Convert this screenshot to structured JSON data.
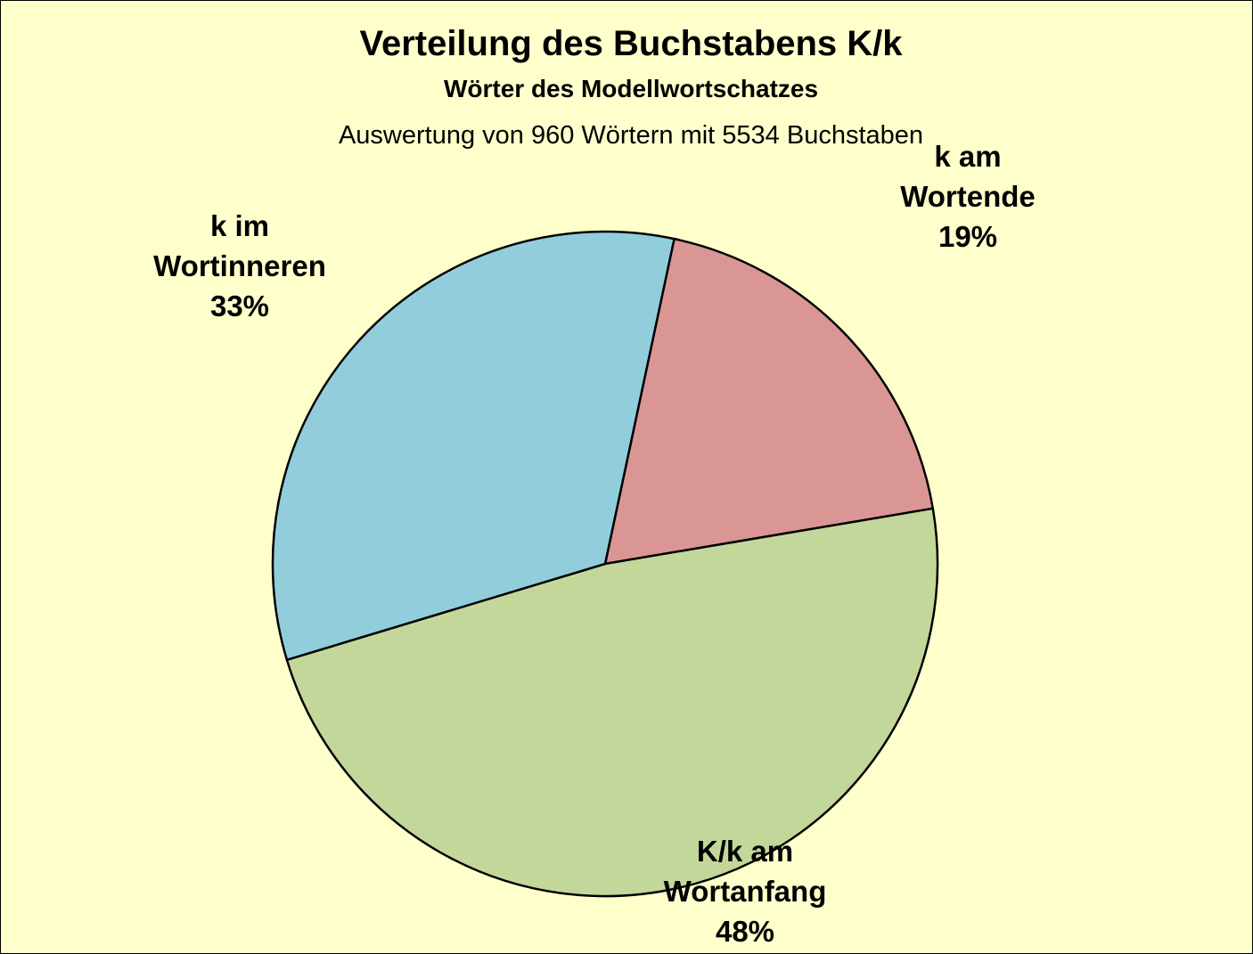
{
  "chart_data": {
    "type": "pie",
    "title": "Verteilung des Buchstabens K/k",
    "subtitle": "Wörter des Modellwortschatzes",
    "note": "Auswertung von 960 Wörtern mit 5534 Buchstaben",
    "start_angle_deg": 12,
    "direction": "clockwise",
    "background_color": "#FFFFCC",
    "slices": [
      {
        "label_lines": [
          "k am",
          "Wortende"
        ],
        "percent_label": "19%",
        "value": 19,
        "color": "#DA9694"
      },
      {
        "label_lines": [
          "K/k am",
          "Wortanfang"
        ],
        "percent_label": "48%",
        "value": 48,
        "color": "#C4D79B"
      },
      {
        "label_lines": [
          "k im",
          "Wortinneren"
        ],
        "percent_label": "33%",
        "value": 33,
        "color": "#92CDDC"
      }
    ]
  }
}
